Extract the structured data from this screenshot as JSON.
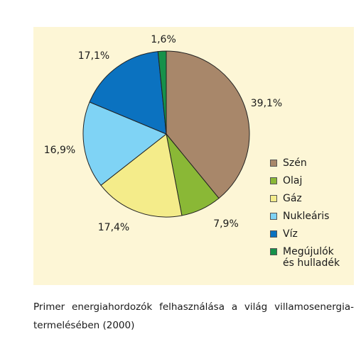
{
  "chart_data": {
    "type": "pie",
    "categories": [
      "Szén",
      "Olaj",
      "Gáz",
      "Nukleáris",
      "Víz",
      "Megújulók\nés hulladék"
    ],
    "values": [
      39.1,
      7.9,
      17.4,
      16.9,
      17.1,
      1.6
    ],
    "value_labels": [
      "39,1%",
      "7,9%",
      "17,4%",
      "16,9%",
      "17,1%",
      "1,6%"
    ],
    "colors": [
      "#a8876a",
      "#8ab836",
      "#f4ec8a",
      "#7fd3f5",
      "#0b72c0",
      "#16914a"
    ],
    "start_angle_deg": 0,
    "direction": "clockwise",
    "legend_position": "right"
  },
  "caption": "Primer energiahordozók felhasználása a világ villamosenergia-termelésében (2000)"
}
